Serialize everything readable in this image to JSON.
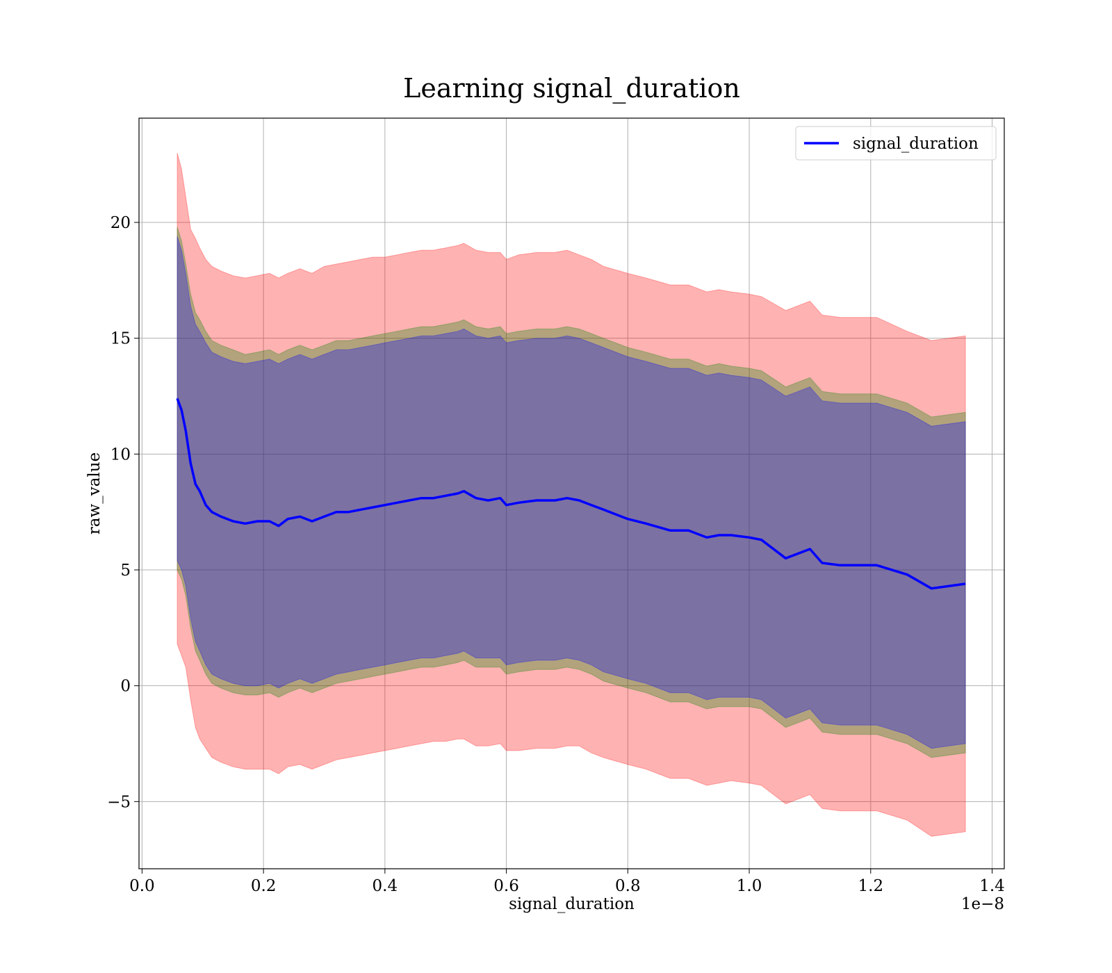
{
  "chart_data": {
    "type": "line",
    "title": "Learning signal_duration",
    "xlabel": "signal_duration",
    "ylabel": "raw_value",
    "x_offset_label": "1e−8",
    "xlim": [
      -0.005,
      1.42
    ],
    "ylim": [
      -7.9,
      24.5
    ],
    "grid": true,
    "legend_position": "top-right",
    "x_ticks": [
      0.0,
      0.2,
      0.4,
      0.6,
      0.8,
      1.0,
      1.2,
      1.4
    ],
    "x_tick_labels": [
      "0.0",
      "0.2",
      "0.4",
      "0.6",
      "0.8",
      "1.0",
      "1.2",
      "1.4"
    ],
    "y_ticks": [
      -5,
      0,
      5,
      10,
      15,
      20
    ],
    "y_tick_labels": [
      "−5",
      "0",
      "5",
      "10",
      "15",
      "20"
    ],
    "x": [
      0.058,
      0.065,
      0.072,
      0.08,
      0.088,
      0.095,
      0.105,
      0.115,
      0.13,
      0.15,
      0.17,
      0.19,
      0.21,
      0.225,
      0.24,
      0.26,
      0.28,
      0.3,
      0.32,
      0.34,
      0.36,
      0.38,
      0.4,
      0.42,
      0.44,
      0.46,
      0.48,
      0.5,
      0.52,
      0.53,
      0.55,
      0.57,
      0.59,
      0.6,
      0.62,
      0.65,
      0.68,
      0.7,
      0.72,
      0.74,
      0.76,
      0.8,
      0.83,
      0.87,
      0.9,
      0.93,
      0.95,
      0.97,
      1.0,
      1.02,
      1.06,
      1.1,
      1.12,
      1.15,
      1.18,
      1.21,
      1.26,
      1.3,
      1.356
    ],
    "series": [
      {
        "name": "signal_duration",
        "color": "#0000ff",
        "values": [
          12.4,
          11.9,
          11.0,
          9.6,
          8.7,
          8.4,
          7.8,
          7.5,
          7.3,
          7.1,
          7.0,
          7.1,
          7.1,
          6.9,
          7.2,
          7.3,
          7.1,
          7.3,
          7.5,
          7.5,
          7.6,
          7.7,
          7.8,
          7.9,
          8.0,
          8.1,
          8.1,
          8.2,
          8.3,
          8.4,
          8.1,
          8.0,
          8.1,
          7.8,
          7.9,
          8.0,
          8.0,
          8.1,
          8.0,
          7.8,
          7.6,
          7.2,
          7.0,
          6.7,
          6.7,
          6.4,
          6.5,
          6.5,
          6.4,
          6.3,
          5.5,
          5.9,
          5.3,
          5.2,
          5.2,
          5.2,
          4.8,
          4.2,
          4.4
        ]
      }
    ],
    "bands": [
      {
        "color": "#ff0000",
        "opacity": 0.3,
        "upper": [
          23.0,
          22.3,
          21.1,
          19.7,
          19.3,
          18.9,
          18.4,
          18.1,
          17.9,
          17.7,
          17.6,
          17.7,
          17.8,
          17.6,
          17.8,
          18.0,
          17.8,
          18.1,
          18.2,
          18.3,
          18.4,
          18.5,
          18.5,
          18.6,
          18.7,
          18.8,
          18.8,
          18.9,
          19.0,
          19.1,
          18.8,
          18.7,
          18.7,
          18.4,
          18.6,
          18.7,
          18.7,
          18.8,
          18.6,
          18.4,
          18.1,
          17.8,
          17.6,
          17.3,
          17.3,
          17.0,
          17.1,
          17.0,
          16.9,
          16.8,
          16.2,
          16.6,
          16.0,
          15.9,
          15.9,
          15.9,
          15.3,
          14.9,
          15.1
        ],
        "lower": [
          1.8,
          1.3,
          0.8,
          -0.6,
          -1.8,
          -2.3,
          -2.7,
          -3.1,
          -3.3,
          -3.5,
          -3.6,
          -3.6,
          -3.6,
          -3.8,
          -3.5,
          -3.4,
          -3.6,
          -3.4,
          -3.2,
          -3.1,
          -3.0,
          -2.9,
          -2.8,
          -2.7,
          -2.6,
          -2.5,
          -2.4,
          -2.4,
          -2.3,
          -2.3,
          -2.6,
          -2.6,
          -2.5,
          -2.8,
          -2.8,
          -2.7,
          -2.7,
          -2.6,
          -2.6,
          -2.9,
          -3.1,
          -3.4,
          -3.6,
          -4.0,
          -4.0,
          -4.3,
          -4.2,
          -4.1,
          -4.2,
          -4.3,
          -5.1,
          -4.7,
          -5.3,
          -5.4,
          -5.4,
          -5.4,
          -5.8,
          -6.5,
          -6.3
        ]
      },
      {
        "color": "#008000",
        "opacity": 0.3,
        "upper": [
          19.8,
          19.2,
          18.2,
          16.9,
          16.1,
          15.8,
          15.3,
          14.9,
          14.7,
          14.5,
          14.3,
          14.4,
          14.5,
          14.3,
          14.5,
          14.7,
          14.5,
          14.7,
          14.9,
          14.9,
          15.0,
          15.1,
          15.2,
          15.3,
          15.4,
          15.5,
          15.5,
          15.6,
          15.7,
          15.8,
          15.5,
          15.4,
          15.5,
          15.2,
          15.3,
          15.4,
          15.4,
          15.5,
          15.4,
          15.2,
          15.0,
          14.6,
          14.4,
          14.1,
          14.1,
          13.8,
          13.9,
          13.8,
          13.7,
          13.6,
          12.9,
          13.3,
          12.7,
          12.6,
          12.6,
          12.6,
          12.2,
          11.6,
          11.8
        ],
        "lower": [
          5.0,
          4.6,
          3.9,
          2.5,
          1.5,
          1.1,
          0.5,
          0.1,
          -0.1,
          -0.3,
          -0.4,
          -0.4,
          -0.3,
          -0.5,
          -0.3,
          -0.1,
          -0.3,
          -0.1,
          0.1,
          0.2,
          0.3,
          0.4,
          0.5,
          0.6,
          0.7,
          0.8,
          0.8,
          0.9,
          1.0,
          1.1,
          0.8,
          0.8,
          0.8,
          0.5,
          0.6,
          0.7,
          0.7,
          0.8,
          0.7,
          0.5,
          0.2,
          -0.1,
          -0.3,
          -0.7,
          -0.7,
          -1.0,
          -0.9,
          -0.9,
          -0.9,
          -1.0,
          -1.8,
          -1.4,
          -2.0,
          -2.1,
          -2.1,
          -2.1,
          -2.5,
          -3.1,
          -2.9
        ]
      },
      {
        "color": "#0000ff",
        "opacity": 0.3,
        "upper": [
          19.4,
          18.8,
          17.8,
          16.4,
          15.6,
          15.3,
          14.8,
          14.4,
          14.2,
          14.0,
          13.9,
          14.0,
          14.1,
          13.9,
          14.1,
          14.3,
          14.1,
          14.3,
          14.5,
          14.5,
          14.6,
          14.7,
          14.8,
          14.9,
          15.0,
          15.1,
          15.1,
          15.2,
          15.3,
          15.4,
          15.1,
          15.0,
          15.1,
          14.8,
          14.9,
          15.0,
          15.0,
          15.1,
          15.0,
          14.8,
          14.6,
          14.2,
          14.0,
          13.7,
          13.7,
          13.4,
          13.5,
          13.4,
          13.3,
          13.2,
          12.5,
          12.9,
          12.3,
          12.2,
          12.2,
          12.2,
          11.8,
          11.2,
          11.4
        ],
        "lower": [
          5.4,
          5.0,
          4.3,
          2.9,
          1.9,
          1.5,
          0.9,
          0.5,
          0.3,
          0.1,
          0.0,
          0.0,
          0.1,
          -0.1,
          0.1,
          0.3,
          0.1,
          0.3,
          0.5,
          0.6,
          0.7,
          0.8,
          0.9,
          1.0,
          1.1,
          1.2,
          1.2,
          1.3,
          1.4,
          1.5,
          1.2,
          1.2,
          1.2,
          0.9,
          1.0,
          1.1,
          1.1,
          1.2,
          1.1,
          0.9,
          0.6,
          0.3,
          0.1,
          -0.3,
          -0.3,
          -0.6,
          -0.5,
          -0.5,
          -0.5,
          -0.6,
          -1.4,
          -1.0,
          -1.6,
          -1.7,
          -1.7,
          -1.7,
          -2.1,
          -2.7,
          -2.5
        ]
      }
    ],
    "grid_color": "#b0b0b0",
    "text_color": "#000000"
  }
}
